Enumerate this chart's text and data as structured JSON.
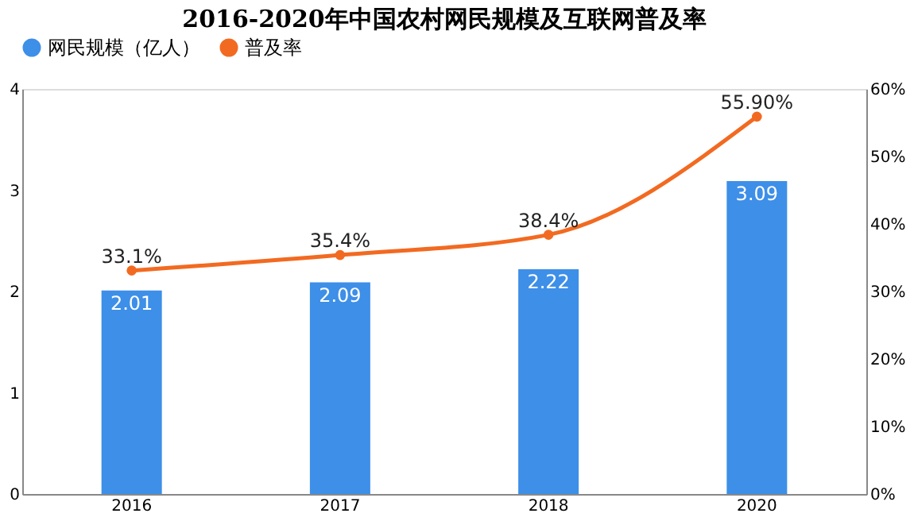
{
  "chart_data": {
    "type": "bar",
    "title": "2016-2020年中国农村网民规模及互联网普及率",
    "categories": [
      "2016",
      "2017",
      "2018",
      "2020"
    ],
    "series": [
      {
        "name": "网民规模（亿人）",
        "color": "#3d8fe8",
        "values": [
          2.01,
          2.09,
          2.22,
          3.09
        ],
        "value_labels": [
          "2.01",
          "2.09",
          "2.22",
          "3.09"
        ]
      },
      {
        "name": "普及率",
        "type": "line",
        "axis": "y2",
        "color": "#f26a21",
        "values": [
          33.1,
          35.4,
          38.4,
          55.9
        ],
        "value_labels": [
          "33.1%",
          "35.4%",
          "38.4%",
          "55.90%"
        ],
        "marker": "circle"
      }
    ],
    "ylim": [
      0,
      4
    ],
    "yticks": [
      0,
      1,
      2,
      3,
      4
    ],
    "y2lim": [
      0,
      60
    ],
    "y2ticks": [
      {
        "value": 0,
        "label": "0%"
      },
      {
        "value": 10,
        "label": "10%"
      },
      {
        "value": 20,
        "label": "20%"
      },
      {
        "value": 30,
        "label": "30%"
      },
      {
        "value": 40,
        "label": "40%"
      },
      {
        "value": 50,
        "label": "50%"
      },
      {
        "value": 60,
        "label": "60%"
      }
    ],
    "legend": "top",
    "grid": false
  }
}
